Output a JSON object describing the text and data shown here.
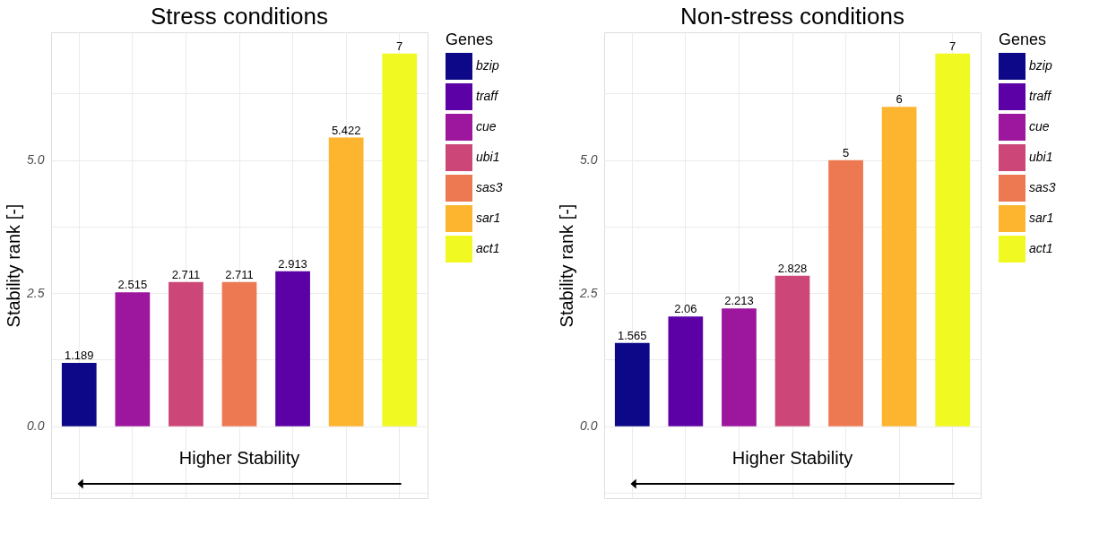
{
  "chart_data": [
    {
      "type": "bar",
      "title": "Stress conditions",
      "ylabel": "Stability rank [-]",
      "legend_title": "Genes",
      "categories": [
        null,
        null,
        null,
        null,
        null,
        null,
        null
      ],
      "series": [
        {
          "name": "bzip",
          "color": "#0d0887",
          "values": [
            1.189,
            null,
            null,
            null,
            null,
            null,
            null
          ]
        },
        {
          "name": "traff",
          "color": "#5c01a6",
          "values": [
            null,
            null,
            null,
            null,
            2.913,
            null,
            null
          ]
        },
        {
          "name": "cue",
          "color": "#9c179e",
          "values": [
            null,
            2.515,
            null,
            null,
            null,
            null,
            null
          ]
        },
        {
          "name": "ubi1",
          "color": "#cc4778",
          "values": [
            null,
            null,
            2.711,
            null,
            null,
            null,
            null
          ]
        },
        {
          "name": "sas3",
          "color": "#ed7953",
          "values": [
            null,
            null,
            null,
            2.711,
            null,
            null,
            null
          ]
        },
        {
          "name": "sar1",
          "color": "#fdb42f",
          "values": [
            null,
            null,
            null,
            null,
            null,
            5.422,
            null
          ]
        },
        {
          "name": "act1",
          "color": "#f0f921",
          "values": [
            null,
            null,
            null,
            null,
            null,
            null,
            7
          ]
        }
      ],
      "ylim": [
        -1.35,
        7.4
      ],
      "yticks": [
        {
          "value": -1.25,
          "label": null
        },
        {
          "value": 0,
          "label": "0.0"
        },
        {
          "value": 1.25,
          "label": null
        },
        2.5,
        {
          "value": 3.75,
          "label": null
        },
        {
          "value": 5,
          "label": "5.0"
        },
        {
          "value": 6.25,
          "label": null
        }
      ],
      "annotations": [
        "Higher Stability"
      ],
      "data_labels": true,
      "grid": true,
      "legend": "right",
      "tick_labels": "y"
    },
    {
      "type": "bar",
      "title": "Non-stress conditions",
      "ylabel": "Stability rank [-]",
      "legend_title": "Genes",
      "categories": [
        null,
        null,
        null,
        null,
        null,
        null,
        null
      ],
      "series": [
        {
          "name": "bzip",
          "color": "#0d0887",
          "values": [
            1.565,
            null,
            null,
            null,
            null,
            null,
            null
          ]
        },
        {
          "name": "traff",
          "color": "#5c01a6",
          "values": [
            null,
            2.06,
            null,
            null,
            null,
            null,
            null
          ]
        },
        {
          "name": "cue",
          "color": "#9c179e",
          "values": [
            null,
            null,
            2.213,
            null,
            null,
            null,
            null
          ]
        },
        {
          "name": "ubi1",
          "color": "#cc4778",
          "values": [
            null,
            null,
            null,
            2.828,
            null,
            null,
            null
          ]
        },
        {
          "name": "sas3",
          "color": "#ed7953",
          "values": [
            null,
            null,
            null,
            null,
            5,
            null,
            null
          ]
        },
        {
          "name": "sar1",
          "color": "#fdb42f",
          "values": [
            null,
            null,
            null,
            null,
            null,
            6,
            null
          ]
        },
        {
          "name": "act1",
          "color": "#f0f921",
          "values": [
            null,
            null,
            null,
            null,
            null,
            null,
            7
          ]
        }
      ],
      "ylim": [
        -1.35,
        7.4
      ],
      "yticks": [
        {
          "value": -1.25,
          "label": null
        },
        {
          "value": 0,
          "label": "0.0"
        },
        {
          "value": 1.25,
          "label": null
        },
        2.5,
        {
          "value": 3.75,
          "label": null
        },
        {
          "value": 5,
          "label": "5.0"
        },
        {
          "value": 6.25,
          "label": null
        }
      ],
      "annotations": [
        "Higher Stability"
      ],
      "data_labels": true,
      "grid": true,
      "legend": "right",
      "tick_labels": "y"
    }
  ]
}
